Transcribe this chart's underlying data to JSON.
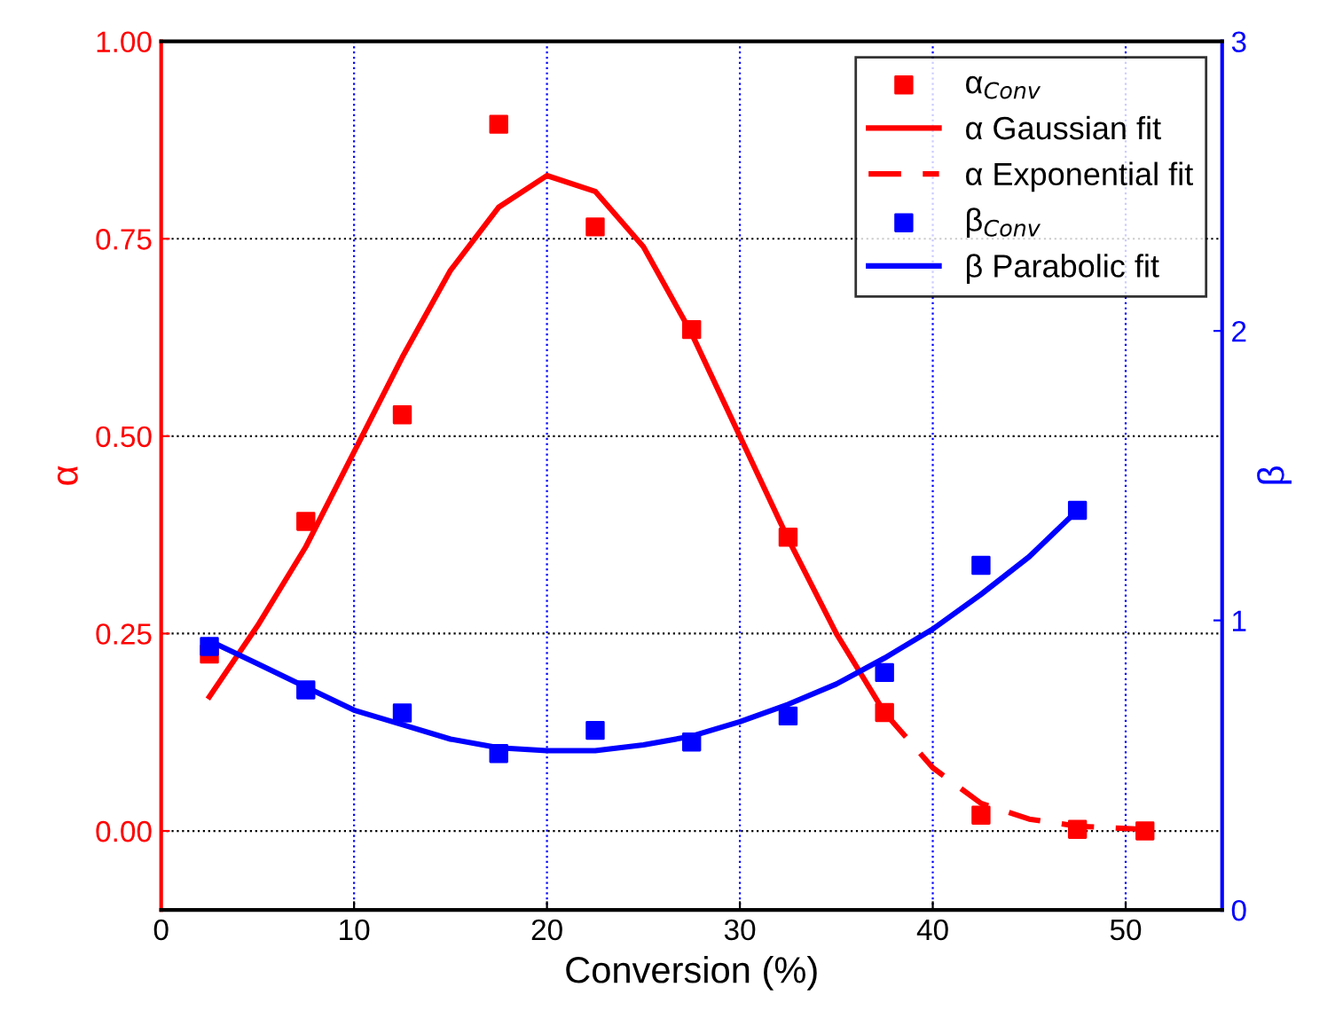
{
  "chart_data": {
    "type": "scatter",
    "xlabel": "Conversion (%)",
    "ylabel": "α",
    "y2label": "β",
    "xlim": [
      0,
      55
    ],
    "xticks": [
      0,
      10,
      20,
      30,
      40,
      50
    ],
    "ylim": [
      -0.1,
      1.0
    ],
    "yticks": [
      {
        "value": 0,
        "label": "0.00"
      },
      {
        "value": 0.25,
        "label": "0.25"
      },
      {
        "value": 0.5,
        "label": "0.50"
      },
      {
        "value": 0.75,
        "label": "0.75"
      },
      {
        "value": 1.0,
        "label": "1.00"
      }
    ],
    "y2lim": [
      0,
      3
    ],
    "y2ticks": [
      0,
      1,
      2,
      3
    ],
    "grid": true,
    "legend": "top right",
    "series": [
      {
        "name": "α$_{Conv}$",
        "axis": "y",
        "color": "#ff0000",
        "marker": "square",
        "x": [
          2.5,
          7.5,
          12.5,
          17.5,
          22.5,
          27.5,
          32.5,
          37.5,
          42.5,
          47.5,
          51
        ],
        "values": [
          0.224,
          0.392,
          0.527,
          0.895,
          0.765,
          0.635,
          0.372,
          0.15,
          0.02,
          0.002,
          0.0
        ]
      },
      {
        "name": "α Gaussian fit",
        "type": "line",
        "axis": "y",
        "color": "#ff0000",
        "line_style": "solid",
        "x": [
          2.5,
          5,
          7.5,
          10,
          12.5,
          15,
          17.5,
          20,
          22.5,
          25,
          27.5,
          30,
          32.5,
          35,
          37.5
        ],
        "values": [
          0.17,
          0.26,
          0.36,
          0.48,
          0.6,
          0.71,
          0.79,
          0.83,
          0.81,
          0.74,
          0.63,
          0.5,
          0.37,
          0.25,
          0.15
        ]
      },
      {
        "name": "α Exponential fit",
        "type": "line",
        "axis": "y",
        "color": "#ff0000",
        "line_style": "dashed",
        "x": [
          37.5,
          40,
          42.5,
          45,
          47.5,
          51
        ],
        "values": [
          0.15,
          0.08,
          0.035,
          0.015,
          0.006,
          0.002
        ]
      },
      {
        "name": "β$_{Conv}$",
        "axis": "y2",
        "color": "#0000ff",
        "marker": "square",
        "x": [
          2.5,
          7.5,
          12.5,
          17.5,
          22.5,
          27.5,
          32.5,
          37.5,
          42.5,
          47.5
        ],
        "values": [
          0.91,
          0.76,
          0.68,
          0.54,
          0.62,
          0.58,
          0.67,
          0.82,
          1.19,
          1.38
        ]
      },
      {
        "name": "β Parabolic fit",
        "type": "line",
        "axis": "y2",
        "color": "#0000ff",
        "line_style": "solid",
        "x": [
          2.5,
          5,
          7.5,
          10,
          12.5,
          15,
          17.5,
          20,
          22.5,
          25,
          27.5,
          30,
          32.5,
          35,
          37.5,
          40,
          42.5,
          45,
          47.5
        ],
        "values": [
          0.93,
          0.85,
          0.77,
          0.69,
          0.64,
          0.59,
          0.56,
          0.55,
          0.55,
          0.57,
          0.6,
          0.65,
          0.71,
          0.78,
          0.87,
          0.97,
          1.09,
          1.22,
          1.38
        ]
      }
    ]
  }
}
